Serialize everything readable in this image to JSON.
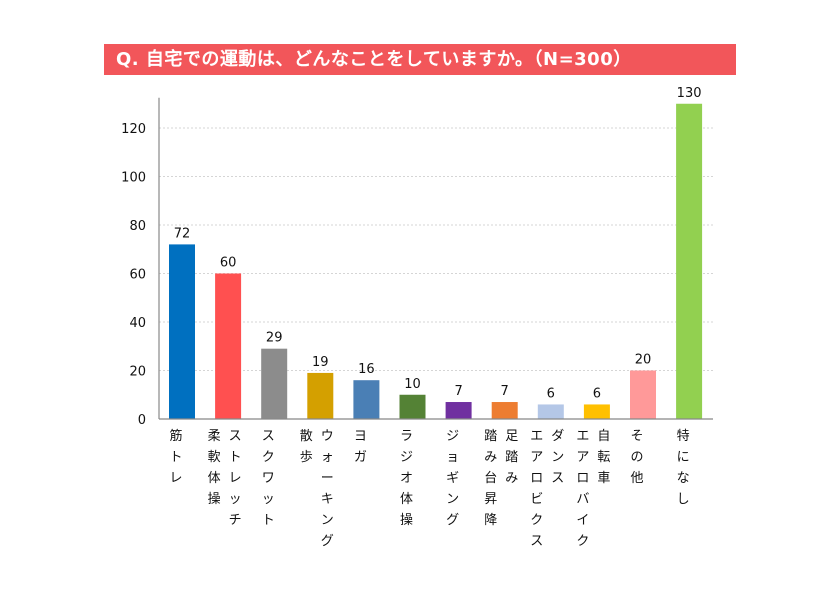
{
  "header": {
    "title": "Q.  自宅での運動は、どんなことをしていますか。（N=300）"
  },
  "chart_data": {
    "type": "bar",
    "title": "Q.  自宅での運動は、どんなことをしていますか。（N=300）",
    "xlabel": "",
    "ylabel": "",
    "ylim": [
      0,
      130
    ],
    "yticks": [
      0,
      20,
      40,
      60,
      80,
      100,
      120
    ],
    "grid": true,
    "legend": "none",
    "categories": [
      "筋トレ",
      "柔軟体操",
      "ストレッチ",
      "スクワット",
      "散歩",
      "ウォーキング",
      "ヨガ",
      "ラジオ体操",
      "ジョギング",
      "踏み台昇降",
      "足踏み",
      "エアロビクス",
      "ダンス",
      "エアロバイク",
      "自転車",
      "その他",
      "特になし"
    ],
    "bars": [
      {
        "label_columns": [
          "筋トレ"
        ],
        "value": 72,
        "color": "#0070c0"
      },
      {
        "label_columns": [
          "柔軟体操",
          "ストレッチ"
        ],
        "value": 60,
        "color": "#ff5050"
      },
      {
        "label_columns": [
          "スクワット"
        ],
        "value": 29,
        "color": "#8c8c8c"
      },
      {
        "label_columns": [
          "散歩",
          "ウォーキング"
        ],
        "value": 19,
        "color": "#d4a000"
      },
      {
        "label_columns": [
          "ヨガ"
        ],
        "value": 16,
        "color": "#4a7fb5"
      },
      {
        "label_columns": [
          "ラジオ体操"
        ],
        "value": 10,
        "color": "#548235"
      },
      {
        "label_columns": [
          "ジョギング"
        ],
        "value": 7,
        "color": "#7030a0"
      },
      {
        "label_columns": [
          "踏み台昇降",
          "足踏み"
        ],
        "value": 7,
        "color": "#ed7d31"
      },
      {
        "label_columns": [
          "エアロビクス",
          "ダンス"
        ],
        "value": 6,
        "color": "#b4c7e7"
      },
      {
        "label_columns": [
          "エアロバイク",
          "自転車"
        ],
        "value": 6,
        "color": "#ffc000"
      },
      {
        "label_columns": [
          "その他"
        ],
        "value": 20,
        "color": "#ff9999"
      },
      {
        "label_columns": [
          "特になし"
        ],
        "value": 130,
        "color": "#92d050"
      }
    ]
  }
}
